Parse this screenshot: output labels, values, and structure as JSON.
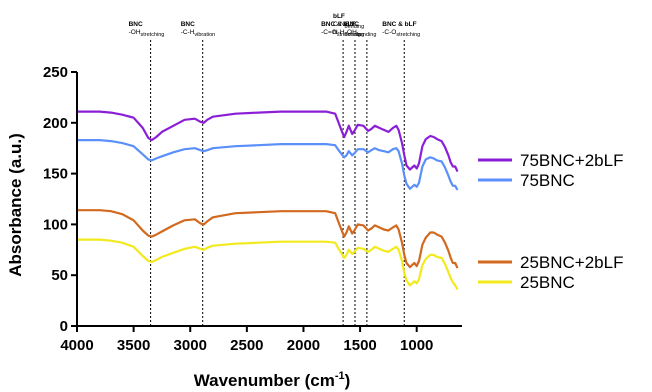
{
  "chart_data": {
    "type": "line",
    "title": "",
    "xlabel": {
      "text": "Wavenumber (cm",
      "sup": "-1",
      "close": ")"
    },
    "ylabel": "Absorbance (a.u.)",
    "xlim": [
      4000,
      600
    ],
    "ylim": [
      0,
      250
    ],
    "x_ticks": [
      4000,
      3500,
      3000,
      2500,
      2000,
      1500,
      1000
    ],
    "y_ticks": [
      0,
      50,
      100,
      150,
      200,
      250
    ],
    "grid": false,
    "legend_position": "right",
    "series": [
      {
        "name": "75BNC+2bLF",
        "color": "#8a1fd6",
        "points": [
          [
            4000,
            211
          ],
          [
            3800,
            211
          ],
          [
            3700,
            210
          ],
          [
            3600,
            208
          ],
          [
            3500,
            205
          ],
          [
            3420,
            195
          ],
          [
            3370,
            185
          ],
          [
            3340,
            183
          ],
          [
            3300,
            186
          ],
          [
            3250,
            191
          ],
          [
            3150,
            197
          ],
          [
            3050,
            203
          ],
          [
            2960,
            204
          ],
          [
            2910,
            201
          ],
          [
            2880,
            200
          ],
          [
            2850,
            203
          ],
          [
            2800,
            206
          ],
          [
            2600,
            209
          ],
          [
            2400,
            210
          ],
          [
            2200,
            211
          ],
          [
            2000,
            211
          ],
          [
            1800,
            211
          ],
          [
            1720,
            209
          ],
          [
            1690,
            200
          ],
          [
            1655,
            190
          ],
          [
            1640,
            186
          ],
          [
            1620,
            191
          ],
          [
            1600,
            197
          ],
          [
            1570,
            189
          ],
          [
            1550,
            192
          ],
          [
            1520,
            198
          ],
          [
            1470,
            197
          ],
          [
            1430,
            192
          ],
          [
            1400,
            194
          ],
          [
            1370,
            197
          ],
          [
            1330,
            195
          ],
          [
            1290,
            193
          ],
          [
            1250,
            191
          ],
          [
            1210,
            195
          ],
          [
            1180,
            197
          ],
          [
            1160,
            193
          ],
          [
            1130,
            180
          ],
          [
            1110,
            168
          ],
          [
            1090,
            158
          ],
          [
            1060,
            154
          ],
          [
            1040,
            156
          ],
          [
            1020,
            158
          ],
          [
            1000,
            155
          ],
          [
            980,
            160
          ],
          [
            950,
            177
          ],
          [
            920,
            184
          ],
          [
            880,
            187
          ],
          [
            850,
            186
          ],
          [
            820,
            184
          ],
          [
            780,
            182
          ],
          [
            750,
            176
          ],
          [
            720,
            168
          ],
          [
            700,
            161
          ],
          [
            680,
            157
          ],
          [
            660,
            157
          ],
          [
            640,
            152
          ]
        ]
      },
      {
        "name": "75BNC",
        "color": "#5b8ff9",
        "points": [
          [
            4000,
            183
          ],
          [
            3800,
            183
          ],
          [
            3700,
            182
          ],
          [
            3600,
            180
          ],
          [
            3500,
            177
          ],
          [
            3420,
            169
          ],
          [
            3370,
            164
          ],
          [
            3340,
            163
          ],
          [
            3300,
            165
          ],
          [
            3250,
            167
          ],
          [
            3150,
            171
          ],
          [
            3050,
            174
          ],
          [
            2960,
            175
          ],
          [
            2910,
            173
          ],
          [
            2880,
            172
          ],
          [
            2850,
            173
          ],
          [
            2800,
            175
          ],
          [
            2600,
            177
          ],
          [
            2400,
            178
          ],
          [
            2200,
            179
          ],
          [
            2000,
            179
          ],
          [
            1800,
            179
          ],
          [
            1720,
            178
          ],
          [
            1690,
            173
          ],
          [
            1655,
            168
          ],
          [
            1640,
            166
          ],
          [
            1620,
            168
          ],
          [
            1600,
            172
          ],
          [
            1570,
            168
          ],
          [
            1550,
            170
          ],
          [
            1520,
            174
          ],
          [
            1470,
            174
          ],
          [
            1430,
            171
          ],
          [
            1400,
            173
          ],
          [
            1370,
            175
          ],
          [
            1330,
            173
          ],
          [
            1290,
            172
          ],
          [
            1250,
            171
          ],
          [
            1210,
            174
          ],
          [
            1180,
            175
          ],
          [
            1160,
            172
          ],
          [
            1130,
            160
          ],
          [
            1110,
            148
          ],
          [
            1090,
            140
          ],
          [
            1060,
            135
          ],
          [
            1040,
            137
          ],
          [
            1020,
            139
          ],
          [
            1000,
            137
          ],
          [
            980,
            141
          ],
          [
            950,
            157
          ],
          [
            920,
            164
          ],
          [
            880,
            166
          ],
          [
            850,
            165
          ],
          [
            820,
            163
          ],
          [
            780,
            162
          ],
          [
            750,
            156
          ],
          [
            720,
            148
          ],
          [
            700,
            142
          ],
          [
            680,
            138
          ],
          [
            660,
            138
          ],
          [
            640,
            134
          ]
        ]
      },
      {
        "name": "25BNC+2bLF",
        "color": "#d2691e",
        "points": [
          [
            4000,
            114
          ],
          [
            3800,
            114
          ],
          [
            3700,
            113
          ],
          [
            3600,
            110
          ],
          [
            3500,
            104
          ],
          [
            3420,
            94
          ],
          [
            3370,
            89
          ],
          [
            3340,
            88
          ],
          [
            3300,
            90
          ],
          [
            3250,
            93
          ],
          [
            3150,
            99
          ],
          [
            3050,
            104
          ],
          [
            2960,
            105
          ],
          [
            2910,
            101
          ],
          [
            2880,
            100
          ],
          [
            2850,
            103
          ],
          [
            2800,
            107
          ],
          [
            2600,
            111
          ],
          [
            2400,
            112
          ],
          [
            2200,
            113
          ],
          [
            2000,
            113
          ],
          [
            1800,
            113
          ],
          [
            1720,
            111
          ],
          [
            1690,
            102
          ],
          [
            1655,
            92
          ],
          [
            1640,
            88
          ],
          [
            1620,
            92
          ],
          [
            1600,
            98
          ],
          [
            1570,
            91
          ],
          [
            1550,
            94
          ],
          [
            1520,
            100
          ],
          [
            1470,
            99
          ],
          [
            1430,
            94
          ],
          [
            1400,
            96
          ],
          [
            1370,
            99
          ],
          [
            1330,
            97
          ],
          [
            1290,
            95
          ],
          [
            1250,
            94
          ],
          [
            1210,
            97
          ],
          [
            1180,
            99
          ],
          [
            1160,
            95
          ],
          [
            1130,
            82
          ],
          [
            1110,
            70
          ],
          [
            1090,
            62
          ],
          [
            1060,
            58
          ],
          [
            1040,
            60
          ],
          [
            1020,
            62
          ],
          [
            1000,
            59
          ],
          [
            980,
            64
          ],
          [
            950,
            80
          ],
          [
            920,
            87
          ],
          [
            880,
            92
          ],
          [
            850,
            92
          ],
          [
            820,
            90
          ],
          [
            780,
            88
          ],
          [
            750,
            82
          ],
          [
            720,
            74
          ],
          [
            700,
            67
          ],
          [
            680,
            62
          ],
          [
            660,
            62
          ],
          [
            640,
            57
          ]
        ]
      },
      {
        "name": "25BNC",
        "color": "#f2ea1d",
        "points": [
          [
            4000,
            85
          ],
          [
            3800,
            85
          ],
          [
            3700,
            84
          ],
          [
            3600,
            82
          ],
          [
            3500,
            78
          ],
          [
            3420,
            69
          ],
          [
            3370,
            64
          ],
          [
            3340,
            63
          ],
          [
            3300,
            65
          ],
          [
            3250,
            68
          ],
          [
            3150,
            72
          ],
          [
            3050,
            76
          ],
          [
            2960,
            78
          ],
          [
            2910,
            76
          ],
          [
            2880,
            75
          ],
          [
            2850,
            77
          ],
          [
            2800,
            79
          ],
          [
            2600,
            81
          ],
          [
            2400,
            82
          ],
          [
            2200,
            83
          ],
          [
            2000,
            83
          ],
          [
            1800,
            83
          ],
          [
            1720,
            82
          ],
          [
            1690,
            76
          ],
          [
            1655,
            70
          ],
          [
            1640,
            67
          ],
          [
            1620,
            70
          ],
          [
            1600,
            75
          ],
          [
            1570,
            71
          ],
          [
            1550,
            73
          ],
          [
            1520,
            77
          ],
          [
            1470,
            76
          ],
          [
            1430,
            73
          ],
          [
            1400,
            75
          ],
          [
            1370,
            78
          ],
          [
            1330,
            76
          ],
          [
            1290,
            74
          ],
          [
            1250,
            73
          ],
          [
            1210,
            76
          ],
          [
            1180,
            78
          ],
          [
            1160,
            75
          ],
          [
            1130,
            64
          ],
          [
            1110,
            52
          ],
          [
            1090,
            45
          ],
          [
            1060,
            40
          ],
          [
            1040,
            42
          ],
          [
            1020,
            44
          ],
          [
            1000,
            42
          ],
          [
            980,
            46
          ],
          [
            950,
            60
          ],
          [
            920,
            66
          ],
          [
            880,
            70
          ],
          [
            850,
            70
          ],
          [
            820,
            68
          ],
          [
            780,
            67
          ],
          [
            750,
            61
          ],
          [
            720,
            53
          ],
          [
            700,
            47
          ],
          [
            680,
            43
          ],
          [
            660,
            40
          ],
          [
            640,
            36
          ]
        ]
      }
    ],
    "annotations": [
      {
        "x": 3350,
        "lines": [
          {
            "text": "BNC",
            "bold": true
          },
          {
            "text": "-OH",
            "sub": "stretching"
          }
        ]
      },
      {
        "x": 2890,
        "lines": [
          {
            "text": "BNC",
            "bold": true
          },
          {
            "text": "-C-H",
            "sub": "vibration"
          }
        ]
      },
      {
        "x": 1650,
        "lines": [
          {
            "text": "BNC & bLF",
            "bold": true
          },
          {
            "text": "-C=O",
            "sub": "stretching"
          }
        ]
      },
      {
        "x": 1545,
        "lines": [
          {
            "text": "bLF",
            "bold": true
          },
          {
            "text": "C-N",
            "sub": "bending"
          },
          {
            "text": "N-H",
            "sub": "bending"
          }
        ]
      },
      {
        "x": 1440,
        "lines": [
          {
            "text": "BNC",
            "bold": true
          },
          {
            "text": "-OH",
            "sub": "bending"
          }
        ]
      },
      {
        "x": 1110,
        "lines": [
          {
            "text": "BNC & bLF",
            "bold": true
          },
          {
            "text": "-C-O",
            "sub": "stretching"
          }
        ]
      }
    ],
    "legend_groups": [
      [
        "75BNC+2bLF",
        "75BNC"
      ],
      [
        "25BNC+2bLF",
        "25BNC"
      ]
    ]
  }
}
